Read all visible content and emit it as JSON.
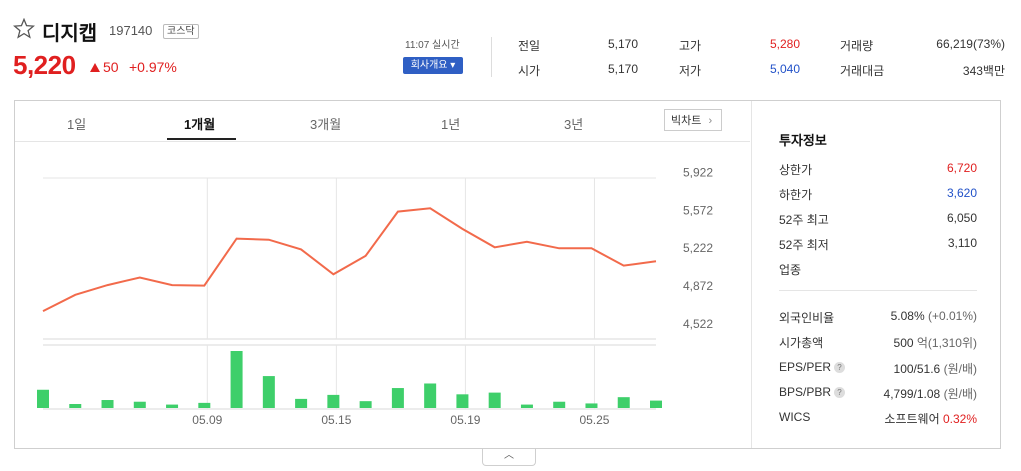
{
  "stock": {
    "name": "디지캡",
    "code": "197140",
    "market": "코스닥",
    "price": "5,220",
    "change": "50",
    "rate": "+0.97%",
    "time": "11:07 실시간",
    "company_button": "회사개요 ▾"
  },
  "summary": {
    "prev_label": "전일",
    "prev": "5,170",
    "open_label": "시가",
    "open": "5,170",
    "high_label": "고가",
    "high": "5,280",
    "low_label": "저가",
    "low": "5,040",
    "volume_label": "거래량",
    "volume": "66,219(73%)",
    "amount_label": "거래대금",
    "amount": "343백만"
  },
  "tabs": [
    "1일",
    "1개월",
    "3개월",
    "1년",
    "3년"
  ],
  "big_chart_label": "빅차트",
  "investment": {
    "title": "투자정보",
    "upper_limit_label": "상한가",
    "upper_limit": "6,720",
    "lower_limit_label": "하한가",
    "lower_limit": "3,620",
    "high52_label": "52주 최고",
    "high52": "6,050",
    "low52_label": "52주 최저",
    "low52": "3,110",
    "sector_label": "업종",
    "foreign_label": "외국인비율",
    "foreign": "5.08%",
    "foreign_change": "(+0.01%)",
    "market_cap_label": "시가총액",
    "market_cap": "500",
    "market_cap_unit": "억(1,310위)",
    "eps_label": "EPS/PER",
    "eps": "100/51.6",
    "eps_unit": "(원/배)",
    "bps_label": "BPS/PBR",
    "bps": "4,799/1.08",
    "bps_unit": "(원/배)",
    "wics_label": "WICS",
    "wics": "소프트웨어",
    "wics_rate": "0.32%"
  },
  "colors": {
    "up": "#e02020",
    "down": "#2151c8",
    "line": "#f26a4b",
    "volume": "#3ecf6a"
  },
  "chart_data": {
    "type": "line",
    "ylim": [
      4400,
      6000
    ],
    "y_ticks": [
      "5,922",
      "5,572",
      "5,222",
      "4,872",
      "4,522"
    ],
    "y_tick_values": [
      5922,
      5572,
      5222,
      4872,
      4522
    ],
    "x_tick_labels": [
      "05.09",
      "05.15",
      "05.19",
      "05.25"
    ],
    "x_tick_index": [
      5,
      9,
      13,
      17
    ],
    "series": [
      {
        "values": [
          4640,
          4790,
          4880,
          4950,
          4880,
          4875,
          5310,
          5300,
          5210,
          4980,
          5150,
          5560,
          5590,
          5400,
          5230,
          5280,
          5220,
          5220,
          5060,
          5100
        ]
      }
    ],
    "volume": [
      0.32,
      0.07,
      0.14,
      0.11,
      0.06,
      0.09,
      1.0,
      0.56,
      0.16,
      0.23,
      0.12,
      0.35,
      0.43,
      0.24,
      0.27,
      0.06,
      0.11,
      0.08,
      0.19,
      0.13
    ]
  }
}
